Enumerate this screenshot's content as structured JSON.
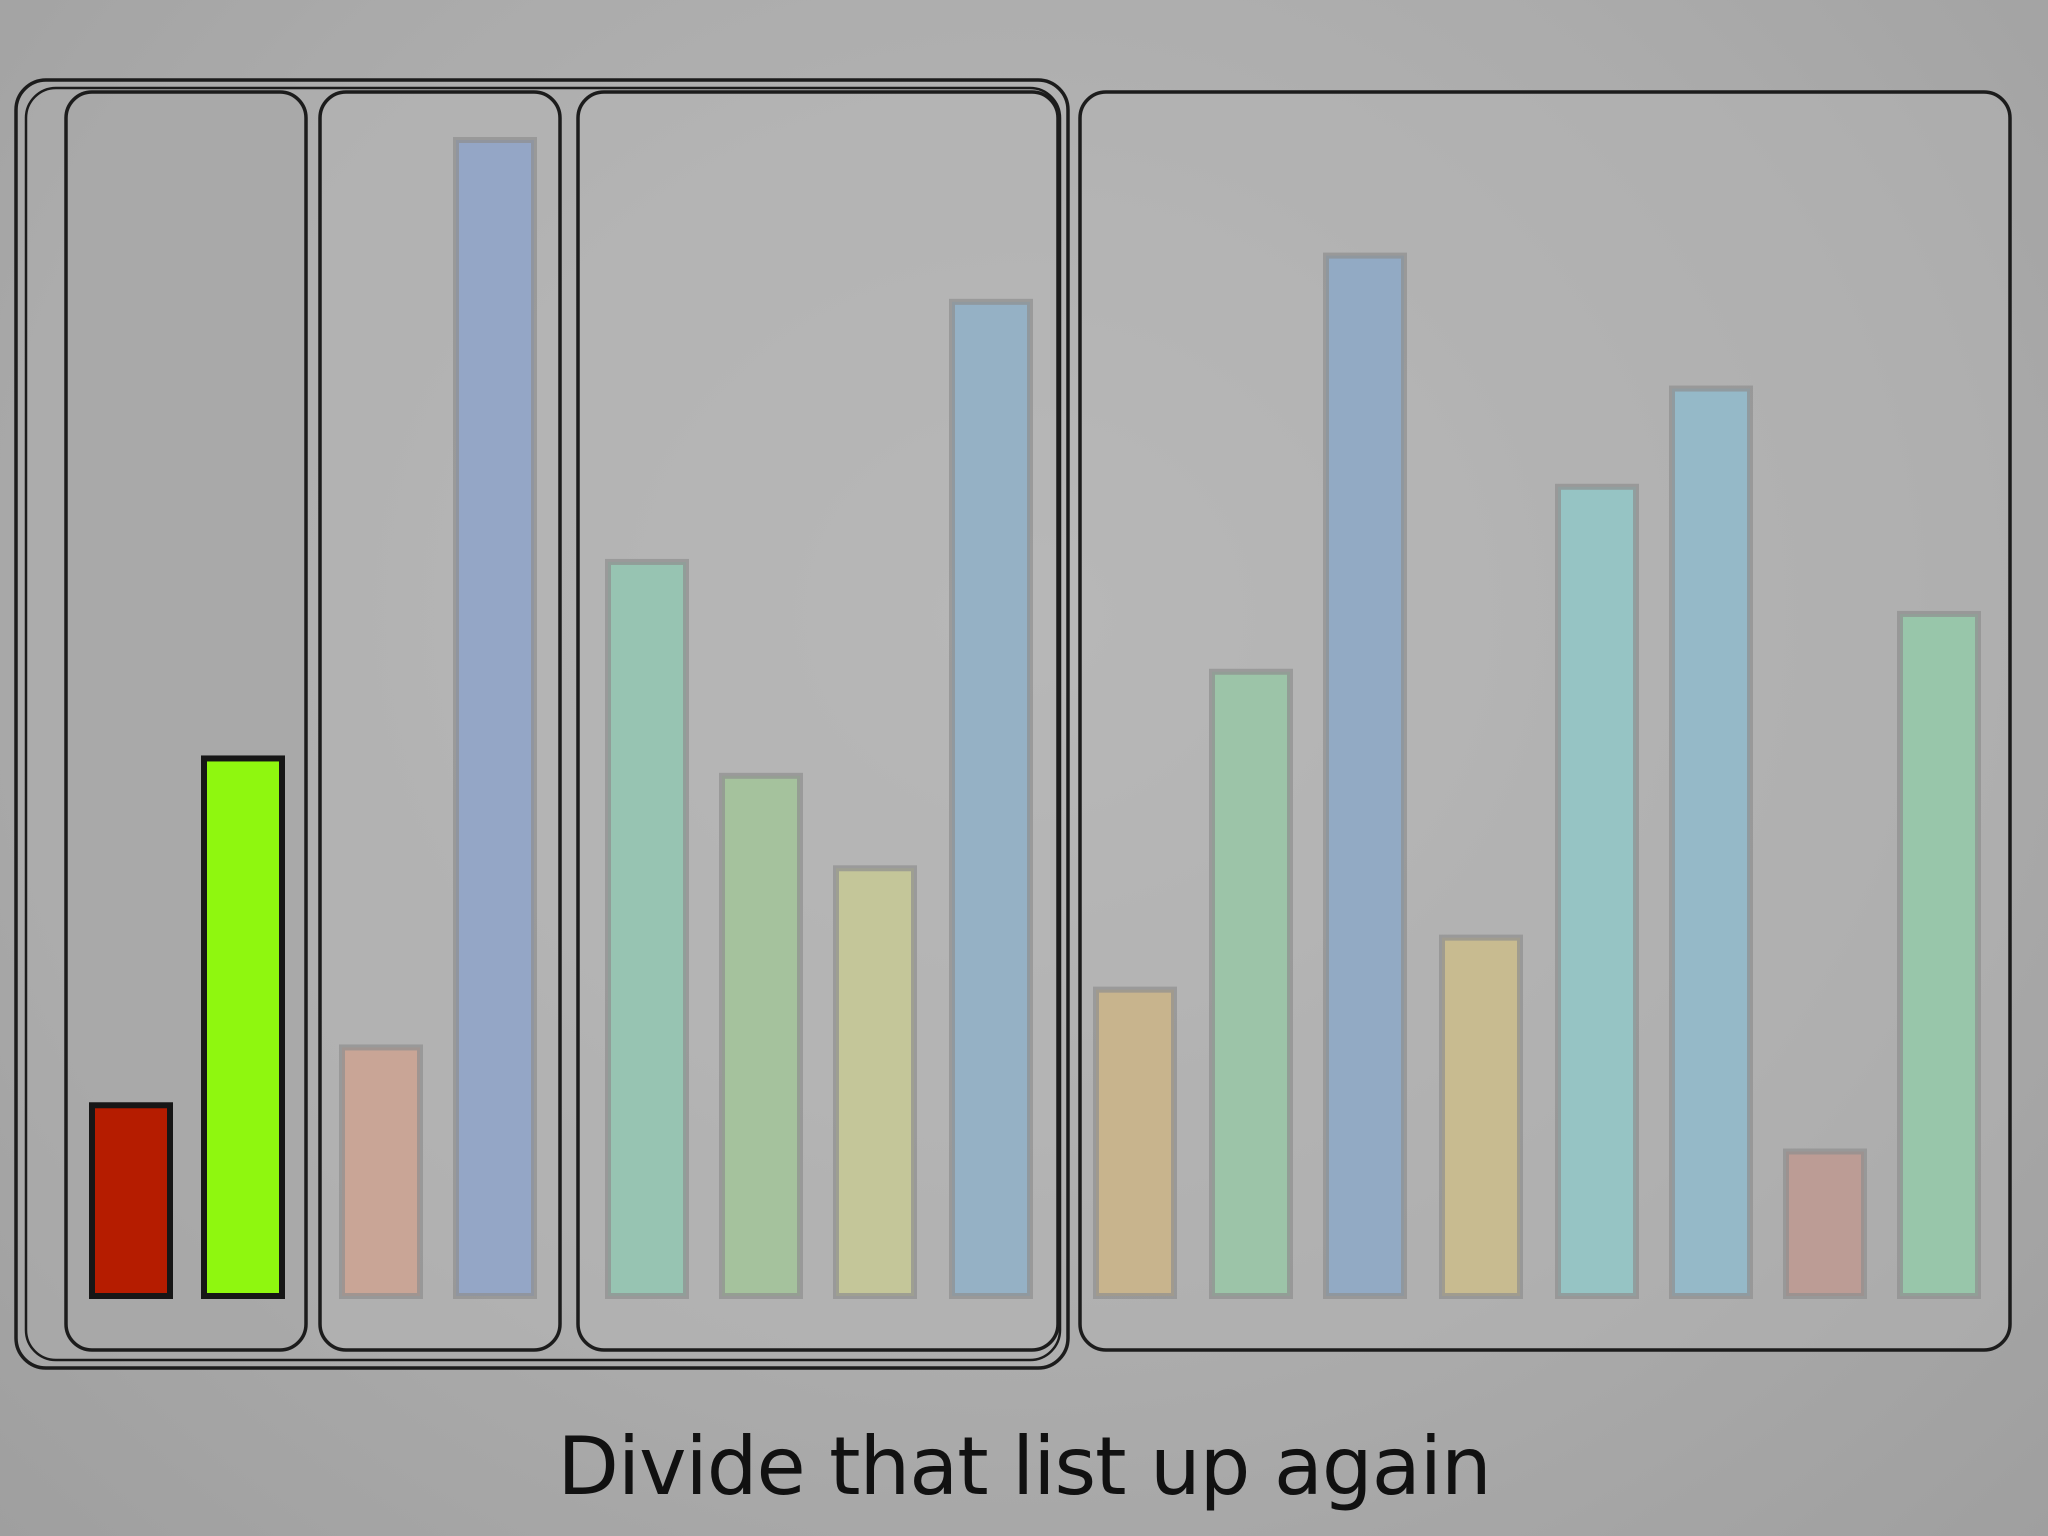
{
  "caption": "Divide that list up again",
  "bars": [
    {
      "value": 0.165,
      "color": "#b51c00",
      "emphasis": "active"
    },
    {
      "value": 0.465,
      "color": "#8ff70f",
      "emphasis": "active"
    },
    {
      "value": 0.215,
      "color": "#c9a596",
      "emphasis": "faded"
    },
    {
      "value": 1.0,
      "color": "#94a6c6",
      "emphasis": "faded"
    },
    {
      "value": 0.635,
      "color": "#97c4b2",
      "emphasis": "faded"
    },
    {
      "value": 0.45,
      "color": "#a5c29d",
      "emphasis": "faded"
    },
    {
      "value": 0.37,
      "color": "#c4c699",
      "emphasis": "faded"
    },
    {
      "value": 0.86,
      "color": "#95b1c5",
      "emphasis": "faded"
    },
    {
      "value": 0.265,
      "color": "#c8b48d",
      "emphasis": "faded"
    },
    {
      "value": 0.54,
      "color": "#9cc4a8",
      "emphasis": "faded"
    },
    {
      "value": 0.9,
      "color": "#92aac4",
      "emphasis": "faded"
    },
    {
      "value": 0.31,
      "color": "#c8bb90",
      "emphasis": "faded"
    },
    {
      "value": 0.7,
      "color": "#96c4c4",
      "emphasis": "faded"
    },
    {
      "value": 0.785,
      "color": "#95b9c8",
      "emphasis": "faded"
    },
    {
      "value": 0.125,
      "color": "#bc9c95",
      "emphasis": "faded"
    },
    {
      "value": 0.59,
      "color": "#98c6aa",
      "emphasis": "faded"
    }
  ],
  "groups": [
    {
      "name": "group-outer-left",
      "from": 0,
      "to": 7,
      "shaded": false
    },
    {
      "name": "group-a",
      "from": 0,
      "to": 1,
      "shaded": true
    },
    {
      "name": "group-b",
      "from": 2,
      "to": 3,
      "shaded": false
    },
    {
      "name": "group-c",
      "from": 4,
      "to": 7,
      "shaded": false
    },
    {
      "name": "group-right",
      "from": 8,
      "to": 15,
      "shaded": false
    }
  ]
}
